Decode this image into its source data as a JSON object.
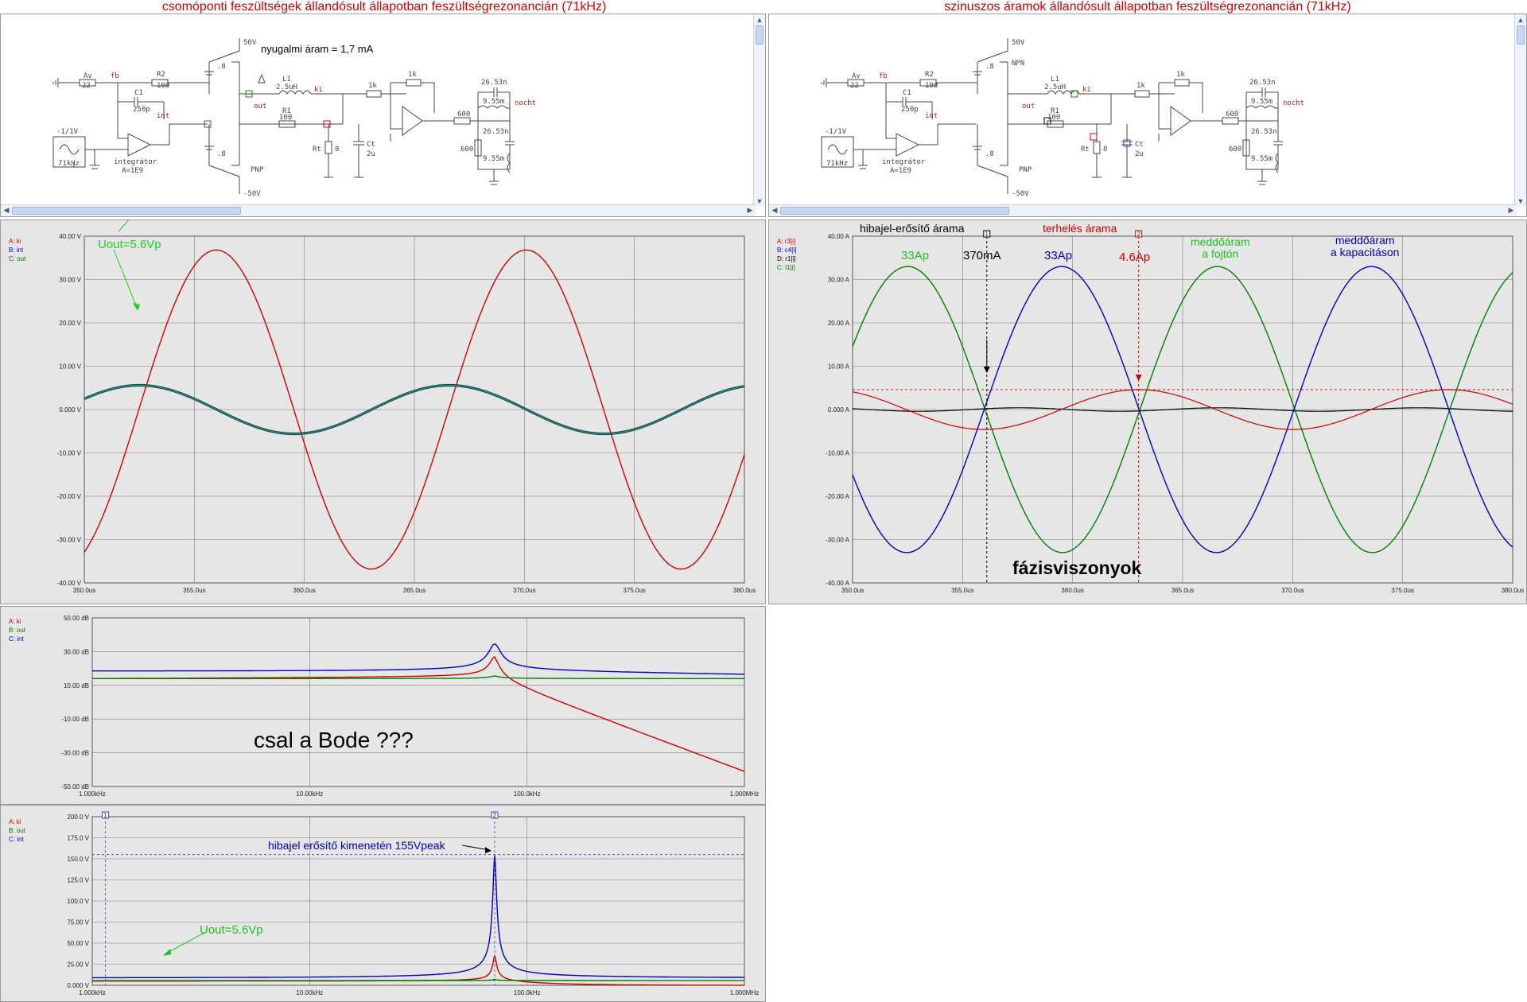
{
  "titles": {
    "left": "csomóponti feszültségek állandósult állapotban feszültségrezonancián (71kHz)",
    "right": "szinuszos áramok állandósult állapotban feszültségrezonancián (71kHz)"
  },
  "schematic": {
    "labels": {
      "av": "Av",
      "av_val": "22",
      "fb": "fb",
      "r2": "R2",
      "r2_val": "100",
      "c1": "C1",
      "c1_val": "250p",
      "int": "int",
      "src_amp": "-1/1V",
      "src_freq": "71kHz",
      "integ1": "integrátor",
      "integ2": "A=1E9",
      "pos_rail": "50V",
      "neg_rail": "-50V",
      "bat1": ".8",
      "bat2": ".8",
      "pnp": "PNP",
      "npn": "NPN",
      "l1": "L1",
      "l1_val": "2.5uH",
      "r1": "R1",
      "r1_val": "100",
      "out": "out",
      "ki": "ki",
      "rt": "Rt",
      "rt_val": "8",
      "ct": "Ct",
      "ct_val": "2u",
      "k1": "1k",
      "k2": "1k",
      "r600a": "600",
      "r600b": "600",
      "c26a": "26.53n",
      "l955a": "9.55m",
      "c26b": "26.53n",
      "l955b": "9.55m",
      "nocht": "nocht"
    },
    "annotation_left": "nyugalmi áram = 1,7 mA"
  },
  "tl": {
    "legend": [
      {
        "t": "A: ki",
        "c": "#d00000"
      },
      {
        "t": "B: int",
        "c": "#0000c0"
      },
      {
        "t": "C: out",
        "c": "#008000"
      }
    ],
    "yticks": [
      "40.00 V",
      "30.00 V",
      "20.00 V",
      "10.00 V",
      "0.000 V",
      "-10.00 V",
      "-20.00 V",
      "-30.00 V",
      "-40.00 V"
    ],
    "xticks": [
      "350.0us",
      "355.0us",
      "360.0us",
      "365.0us",
      "370.0us",
      "375.0us",
      "380.0us"
    ],
    "note": "Uout=5.6Vp"
  },
  "tr": {
    "legend": [
      {
        "t": "A: r3[i]",
        "c": "#d00000"
      },
      {
        "t": "B: c4[i]",
        "c": "#0000c0"
      },
      {
        "t": "D: r1[i]",
        "c": "#000000"
      },
      {
        "t": "C: l1[i]",
        "c": "#008000"
      }
    ],
    "yticks": [
      "40.00 A",
      "30.00 A",
      "20.00 A",
      "10.00 A",
      "0.000 A",
      "-10.00 A",
      "-20.00 A",
      "-30.00 A",
      "-40.00 A"
    ],
    "xticks": [
      "350.0us",
      "355.0us",
      "360.0us",
      "365.0us",
      "370.0us",
      "375.0us",
      "380.0us"
    ],
    "notes": {
      "hibajel": "hibajel-erősítő árama",
      "terheles": "terhelés árama",
      "a33_1": "33Ap",
      "ma370": "370mA",
      "a33_2": "33Ap",
      "ap46": "4.6Ap",
      "meddo1a": "meddőáram",
      "meddo1b": "a fojtón",
      "meddo2a": "meddőáram",
      "meddo2b": "a kapacitáson",
      "fazis": "fázisviszonyok",
      "m1": "1",
      "m2": "2"
    }
  },
  "bl1": {
    "legend": [
      {
        "t": "A: ki",
        "c": "#d00000"
      },
      {
        "t": "B: out",
        "c": "#008000"
      },
      {
        "t": "C: int",
        "c": "#0000c0"
      }
    ],
    "yticks": [
      "50.00 dB",
      "30.00 dB",
      "10.00 dB",
      "-10.00 dB",
      "-30.00 dB",
      "-50.00 dB"
    ],
    "xticks": [
      "1.000kHz",
      "10.00kHz",
      "100.0kHz",
      "1.000MHz"
    ],
    "note": "csal a Bode ???"
  },
  "bl2": {
    "legend": [
      {
        "t": "A: ki",
        "c": "#d00000"
      },
      {
        "t": "B: out",
        "c": "#008000"
      },
      {
        "t": "C: int",
        "c": "#0000c0"
      }
    ],
    "yticks": [
      "200.0 V",
      "175.0 V",
      "150.0 V",
      "125.0 V",
      "100.0 V",
      "75.00 V",
      "50.00 V",
      "25.00 V",
      "0.000 V"
    ],
    "xticks": [
      "1.000kHz",
      "10.00kHz",
      "100.0kHz",
      "1.000MHz"
    ],
    "note_peak": "hibajel erősítő kimenetén 155Vpeak",
    "note_uout": "Uout=5.6Vp",
    "m1": "1",
    "m2": "2"
  },
  "colors": {
    "red": "#d00000",
    "blue": "#0000c0",
    "green": "#008000",
    "plot_bg": "#e6e6e6",
    "grid": "#7a7a7a"
  }
}
